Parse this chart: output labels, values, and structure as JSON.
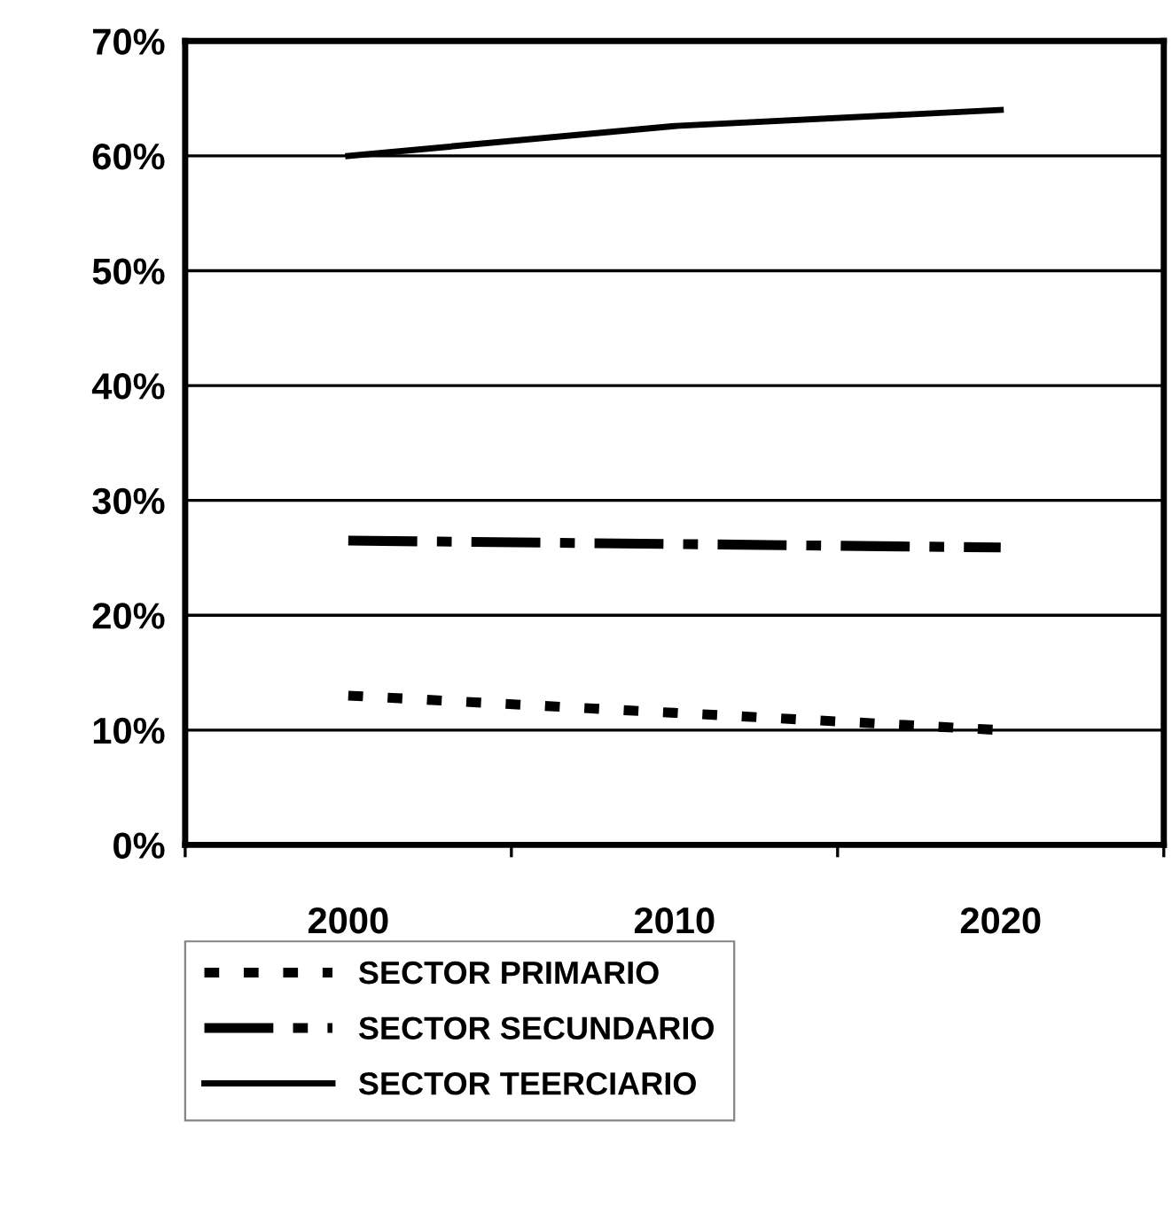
{
  "chart_data": {
    "type": "line",
    "categories": [
      "2000",
      "2010",
      "2020"
    ],
    "series": [
      {
        "name": "SECTOR PRIMARIO",
        "color": "#000000",
        "line_style": "dotted",
        "values": [
          13,
          11.5,
          10
        ]
      },
      {
        "name": "SECTOR SECUNDARIO",
        "color": "#000000",
        "line_style": "dashed",
        "values": [
          26.5,
          26.2,
          25.9
        ]
      },
      {
        "name": "SECTOR TEERCIARIO",
        "color": "#000000",
        "line_style": "solid",
        "values": [
          60,
          62.6,
          64
        ]
      }
    ],
    "ylim": [
      0,
      70
    ],
    "yticks": [
      {
        "value": 0,
        "label": "0%"
      },
      {
        "value": 10,
        "label": "10%"
      },
      {
        "value": 20,
        "label": "20%"
      },
      {
        "value": 30,
        "label": "30%"
      },
      {
        "value": 40,
        "label": "40%"
      },
      {
        "value": 50,
        "label": "50%"
      },
      {
        "value": 60,
        "label": "60%"
      },
      {
        "value": 70,
        "label": "70%"
      }
    ],
    "grid": "y",
    "legend": "bottom",
    "marker": "none"
  }
}
